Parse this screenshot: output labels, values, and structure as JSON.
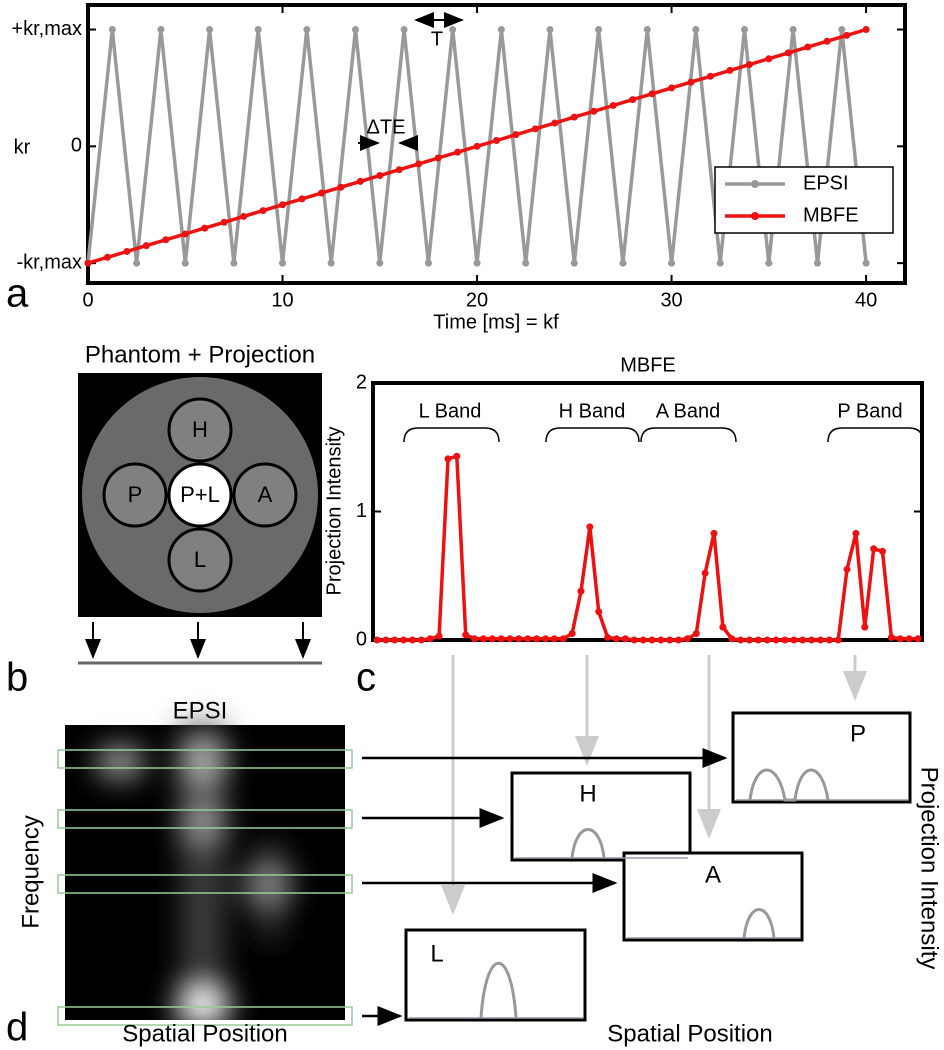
{
  "chart_data": [
    {
      "type": "line",
      "x_label": "Time [ms] = kf",
      "y_label": "kr",
      "xlim": [
        0,
        42
      ],
      "xticks": [
        0,
        10,
        20,
        30,
        40
      ],
      "ylim": [
        -1.17,
        1.21
      ],
      "yticks": [
        {
          "value": -1,
          "label": "-kr,max"
        },
        0,
        {
          "value": 1,
          "label": "+kr,max"
        }
      ],
      "grid": false,
      "legend": "lower right",
      "annotations": [
        "T",
        "ΔTE"
      ],
      "series": [
        {
          "name": "EPSI",
          "color": "#999999",
          "x": [
            0,
            1.25,
            2.5,
            3.75,
            5,
            6.25,
            7.5,
            8.75,
            10,
            11.25,
            12.5,
            13.75,
            15,
            16.25,
            17.5,
            18.75,
            20,
            21.25,
            22.5,
            23.75,
            25,
            26.25,
            27.5,
            28.75,
            30,
            31.25,
            32.5,
            33.75,
            35,
            36.25,
            37.5,
            38.75,
            40
          ],
          "values": [
            -1,
            1,
            -1,
            1,
            -1,
            1,
            -1,
            1,
            -1,
            1,
            -1,
            1,
            -1,
            1,
            -1,
            1,
            -1,
            1,
            -1,
            1,
            -1,
            1,
            -1,
            1,
            -1,
            1,
            -1,
            1,
            -1,
            1,
            -1,
            1,
            -1
          ]
        },
        {
          "name": "MBFE",
          "color": "#ee1111",
          "x": [
            0,
            1,
            2,
            3,
            4,
            5,
            6,
            7,
            8,
            9,
            10,
            11,
            12,
            13,
            14,
            15,
            16,
            17,
            18,
            19,
            20,
            21,
            22,
            23,
            24,
            25,
            26,
            27,
            28,
            29,
            30,
            31,
            32,
            33,
            34,
            35,
            36,
            37,
            38,
            39,
            40
          ],
          "values": [
            -1,
            -0.95,
            -0.9,
            -0.85,
            -0.8,
            -0.75,
            -0.7,
            -0.65,
            -0.6,
            -0.55,
            -0.5,
            -0.45,
            -0.4,
            -0.35,
            -0.3,
            -0.25,
            -0.2,
            -0.15,
            -0.1,
            -0.05,
            0,
            0.05,
            0.1,
            0.15,
            0.2,
            0.25,
            0.3,
            0.35,
            0.4,
            0.45,
            0.5,
            0.55,
            0.6,
            0.65,
            0.7,
            0.75,
            0.8,
            0.85,
            0.9,
            0.95,
            1
          ]
        }
      ]
    },
    {
      "type": "line",
      "title": "MBFE",
      "y_label": "Projection Intensity",
      "ylim": [
        0,
        2
      ],
      "yticks": [
        0,
        1,
        2
      ],
      "grid": false,
      "color": "#ee1111",
      "annotations": [
        "L Band",
        "H Band",
        "A Band",
        "P Band"
      ],
      "values": [
        0,
        0,
        0,
        0,
        0,
        0,
        0.01,
        0.03,
        1.41,
        1.43,
        0.04,
        0.01,
        0.01,
        0.01,
        0.01,
        0.01,
        0.01,
        0.01,
        0.01,
        0.01,
        0.01,
        0.01,
        0.05,
        0.38,
        0.88,
        0.22,
        0.02,
        0.01,
        0.01,
        0,
        0,
        0,
        0,
        0,
        0,
        0.01,
        0.05,
        0.52,
        0.83,
        0.1,
        0.01,
        0,
        0,
        0,
        0,
        0,
        0,
        0,
        0,
        0,
        0,
        0,
        0,
        0.55,
        0.83,
        0.1,
        0.71,
        0.69,
        0.02,
        0.01,
        0.01,
        0.01
      ]
    }
  ],
  "panel_labels": [
    "a",
    "b",
    "c",
    "d"
  ],
  "phantom": {
    "title": "Phantom + Projection",
    "compartments": [
      "H",
      "P",
      "P+L",
      "A",
      "L"
    ]
  },
  "epsi_map": {
    "title": "EPSI",
    "y_label": "Frequency",
    "x_label": "Spatial Position"
  },
  "projections": {
    "plots": [
      "P",
      "H",
      "A",
      "L"
    ],
    "y_label": "Projection Intensity",
    "x_label": "Spatial Position"
  }
}
